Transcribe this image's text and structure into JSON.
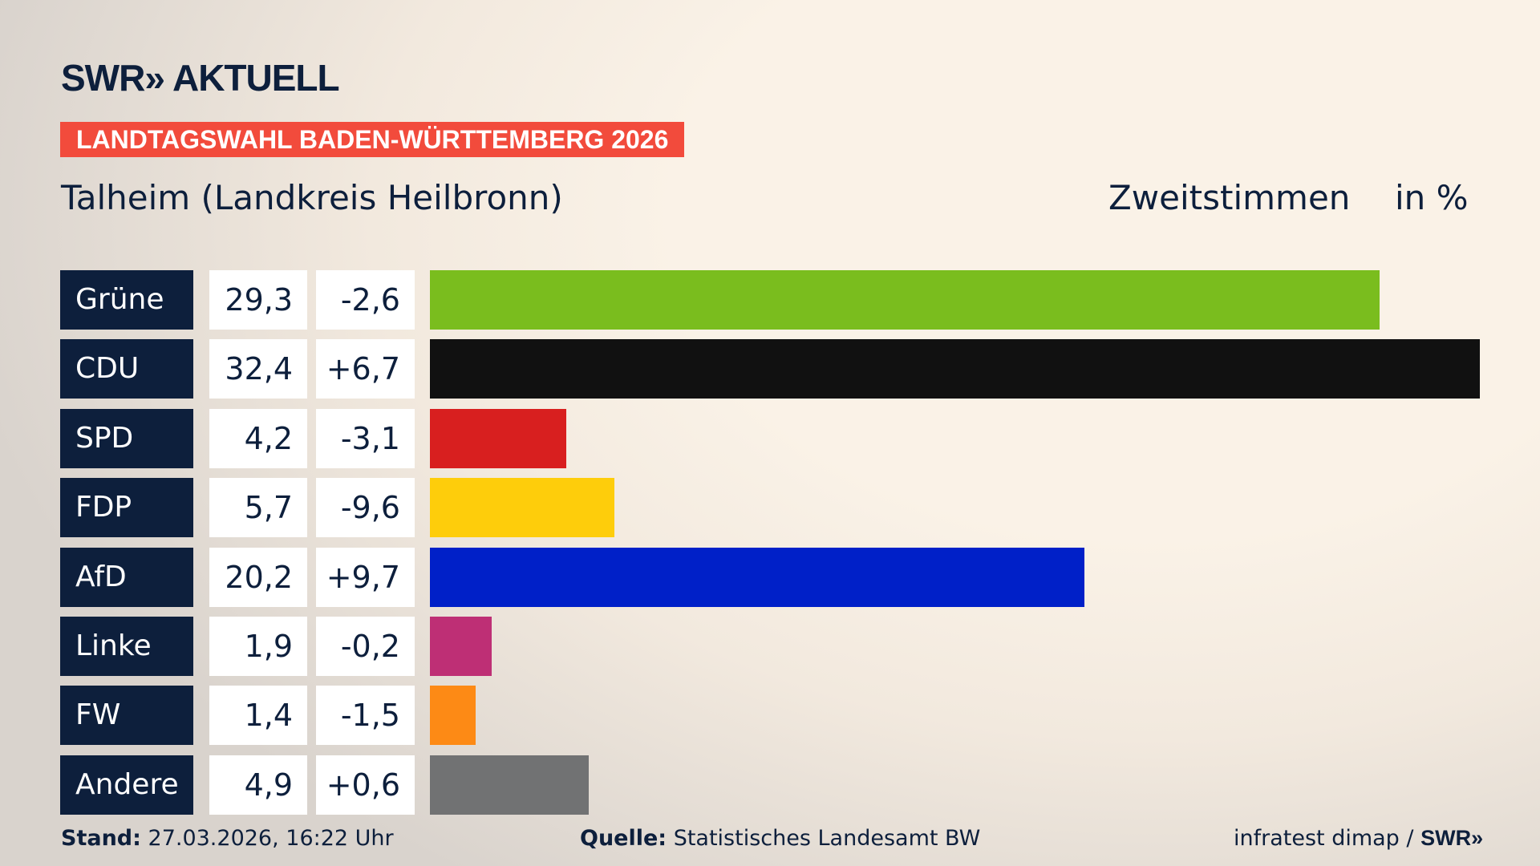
{
  "header": {
    "logo": "SWR» AKTUELL",
    "banner": "LANDTAGSWAHL BADEN-WÜRTTEMBERG 2026",
    "place": "Talheim (Landkreis Heilbronn)",
    "vote_type": "Zweitstimmen",
    "unit": "in %"
  },
  "chart_data": {
    "type": "bar",
    "orientation": "horizontal",
    "categories": [
      "Grüne",
      "CDU",
      "SPD",
      "FDP",
      "AfD",
      "Linke",
      "FW",
      "Andere"
    ],
    "values": [
      29.3,
      32.4,
      4.2,
      5.7,
      20.2,
      1.9,
      1.4,
      4.9
    ],
    "value_labels": [
      "29,3",
      "32,4",
      "4,2",
      "5,7",
      "20,2",
      "1,9",
      "1,4",
      "4,9"
    ],
    "changes": [
      -2.6,
      6.7,
      -3.1,
      -9.6,
      9.7,
      -0.2,
      -1.5,
      0.6
    ],
    "change_labels": [
      "-2,6",
      "+6,7",
      "-3,1",
      "-9,6",
      "+9,7",
      "-0,2",
      "-1,5",
      "+0,6"
    ],
    "colors": [
      "#7abd1e",
      "#111111",
      "#d81f1f",
      "#fecd0b",
      "#0020c8",
      "#be2f75",
      "#fd8a15",
      "#717273"
    ]
  },
  "footer": {
    "stand_label": "Stand:",
    "stand_value": "27.03.2026, 16:22 Uhr",
    "source_label": "Quelle:",
    "source_value": "Statistisches Landesamt BW",
    "credit": "infratest dimap / ",
    "credit_logo": "SWR»"
  }
}
